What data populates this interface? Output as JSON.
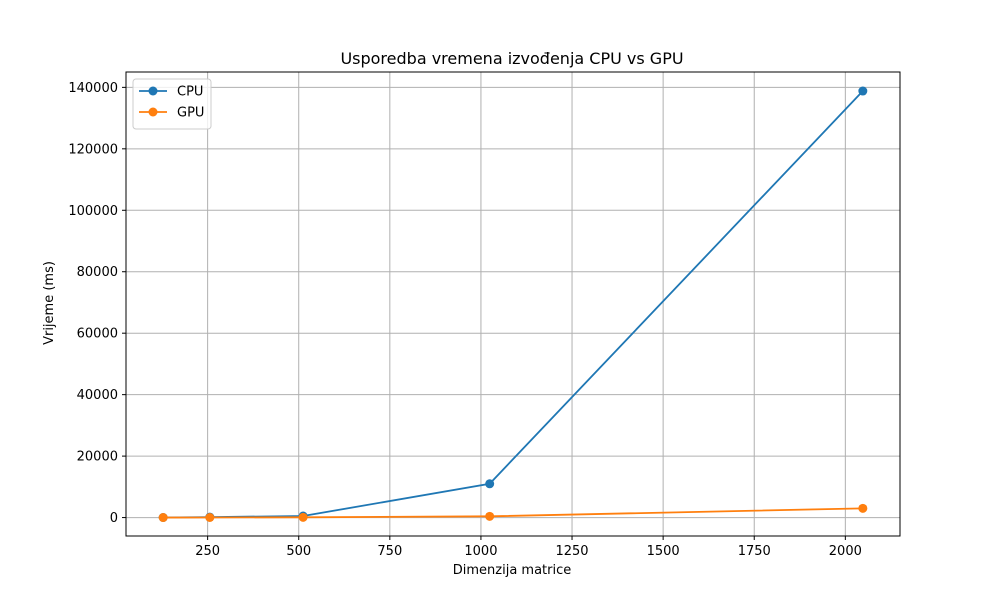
{
  "chart_data": {
    "type": "line",
    "title": "Usporedba vremena izvođenja CPU vs GPU",
    "xlabel": "Dimenzija matrice",
    "ylabel": "Vrijeme (ms)",
    "xlim": [
      -0.5,
      2150
    ],
    "ylim": [
      -6000,
      145000
    ],
    "xticks": [
      250,
      500,
      750,
      1000,
      1250,
      1500,
      1750,
      2000
    ],
    "yticks": [
      0,
      20000,
      40000,
      60000,
      80000,
      100000,
      120000,
      140000
    ],
    "grid": true,
    "legend_position": "top-left",
    "series": [
      {
        "name": "CPU",
        "color": "#1f77b4",
        "marker": "circle",
        "x": [
          128,
          256,
          512,
          1024,
          2048
        ],
        "y": [
          20,
          150,
          500,
          11000,
          138800
        ]
      },
      {
        "name": "GPU",
        "color": "#ff7f0e",
        "marker": "circle",
        "x": [
          128,
          256,
          512,
          1024,
          2048
        ],
        "y": [
          5,
          20,
          80,
          400,
          3000
        ]
      }
    ]
  }
}
